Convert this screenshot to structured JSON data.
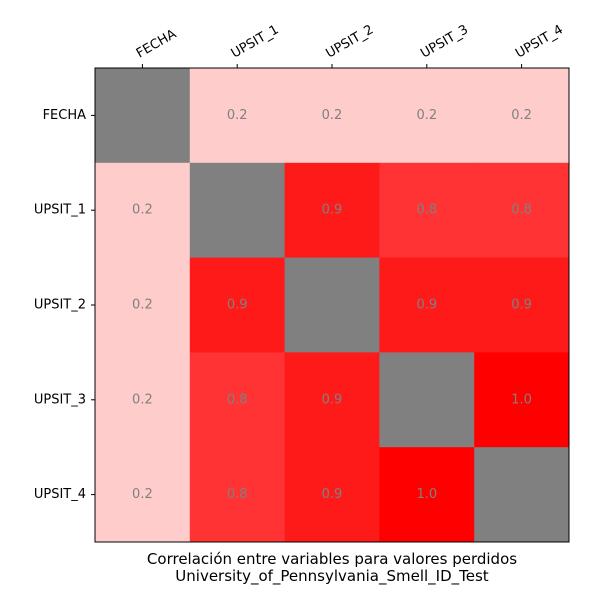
{
  "chart_data": {
    "type": "heatmap",
    "labels": [
      "FECHA",
      "UPSIT_1",
      "UPSIT_2",
      "UPSIT_3",
      "UPSIT_4"
    ],
    "matrix": [
      [
        null,
        0.2,
        0.2,
        0.2,
        0.2
      ],
      [
        0.2,
        null,
        0.9,
        0.8,
        0.8
      ],
      [
        0.2,
        0.9,
        null,
        0.9,
        0.9
      ],
      [
        0.2,
        0.8,
        0.9,
        null,
        1.0
      ],
      [
        0.2,
        0.8,
        0.9,
        1.0,
        null
      ]
    ],
    "value_format": "0.0",
    "diagonal_color": "#808080",
    "base_color": "#ffffff",
    "max_color": "#ff0000",
    "value_text_color": "#808080",
    "x_tick_position": "top",
    "x_tick_rotation": -30,
    "grid": false,
    "xlabel": "Correlación entre variables para valores perdidos",
    "xlabel_line2": "University_of_Pennsylvania_Smell_ID_Test"
  }
}
